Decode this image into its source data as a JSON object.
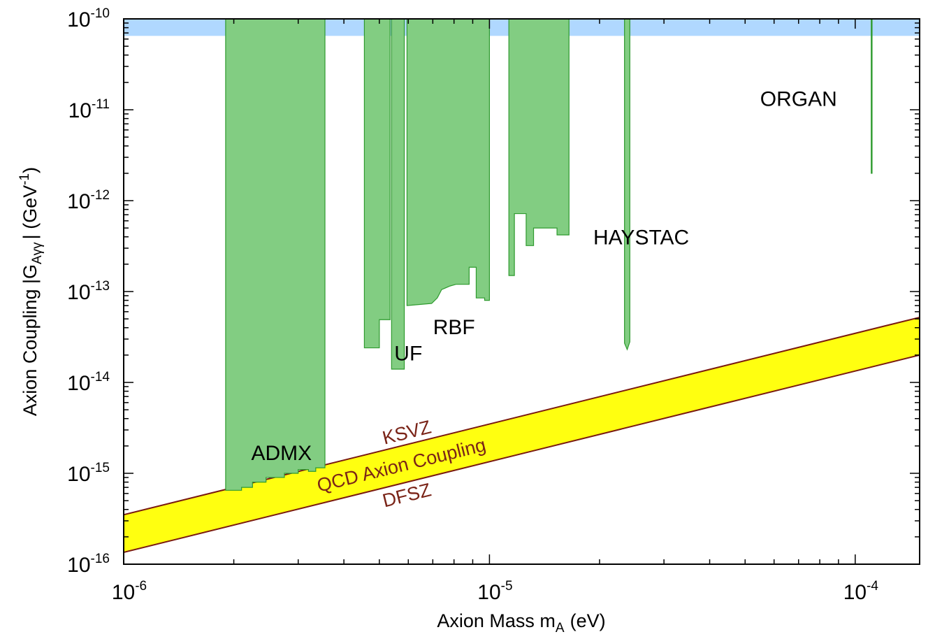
{
  "chart_data": {
    "type": "area",
    "title": "",
    "xlabel": "Axion Mass m",
    "xlabel_sub": "A",
    "xlabel_unit": "(eV)",
    "ylabel": "Axion Coupling |G",
    "ylabel_sub": "Aγγ",
    "ylabel_unit": "| (GeV",
    "ylabel_unit_sup": "-1",
    "ylabel_close": ")",
    "x_scale": "log",
    "y_scale": "log",
    "xlim": [
      1e-06,
      0.00015
    ],
    "ylim": [
      1e-16,
      1e-10
    ],
    "x_ticks": [
      {
        "value": 1e-06,
        "base": "10",
        "exp": "-6"
      },
      {
        "value": 1e-05,
        "base": "10",
        "exp": "-5"
      },
      {
        "value": 0.0001,
        "base": "10",
        "exp": "-4"
      }
    ],
    "y_ticks": [
      {
        "value": 1e-16,
        "base": "10",
        "exp": "-16"
      },
      {
        "value": 1e-15,
        "base": "10",
        "exp": "-15"
      },
      {
        "value": 1e-14,
        "base": "10",
        "exp": "-14"
      },
      {
        "value": 1e-13,
        "base": "10",
        "exp": "-13"
      },
      {
        "value": 1e-12,
        "base": "10",
        "exp": "-12"
      },
      {
        "value": 1e-11,
        "base": "10",
        "exp": "-11"
      },
      {
        "value": 1e-10,
        "base": "10",
        "exp": "-10"
      }
    ],
    "grid": false,
    "colors": {
      "exclusion_fill": "#82cd82",
      "exclusion_edge": "#2e9a2e",
      "qcd_band_fill": "#ffff10",
      "qcd_band_edge": "#7a1a10",
      "top_band_fill": "#b0d8ff",
      "band_label_color": "#7a2418"
    },
    "top_band": {
      "y_from": 6.5e-11,
      "y_to": 1e-10
    },
    "qcd_band": {
      "label": "QCD Axion Coupling",
      "upper_name": "KSVZ",
      "lower_name": "DFSZ",
      "upper_line": [
        [
          1e-06,
          3.5e-16
        ],
        [
          0.00015,
          5.2e-14
        ]
      ],
      "lower_line": [
        [
          1e-06,
          1.35e-16
        ],
        [
          0.00015,
          2e-14
        ]
      ]
    },
    "experiments": [
      {
        "name": "ADMX",
        "label_x": 2.7e-06,
        "label_y": 1.4e-15,
        "regions": [
          {
            "x_from": 1.9e-06,
            "x_to": 3.55e-06,
            "top": 1e-10,
            "lower": [
              [
                1.9e-06,
                6.5e-16
              ],
              [
                2.1e-06,
                6.5e-16
              ],
              [
                2.1e-06,
                7e-16
              ],
              [
                2.25e-06,
                7e-16
              ],
              [
                2.25e-06,
                8e-16
              ],
              [
                2.45e-06,
                8e-16
              ],
              [
                2.45e-06,
                9e-16
              ],
              [
                2.75e-06,
                9e-16
              ],
              [
                2.75e-06,
                1e-15
              ],
              [
                3e-06,
                1e-15
              ],
              [
                3e-06,
                1.1e-15
              ],
              [
                3.2e-06,
                1.1e-15
              ],
              [
                3.2e-06,
                1.05e-15
              ],
              [
                3.35e-06,
                1.05e-15
              ],
              [
                3.35e-06,
                1.15e-15
              ],
              [
                3.55e-06,
                1.15e-15
              ]
            ]
          }
        ]
      },
      {
        "name": "UF",
        "label_x": 6e-06,
        "label_y": 1.75e-14,
        "regions": [
          {
            "x_from": 4.55e-06,
            "x_to": 5.35e-06,
            "top": 1e-10,
            "lower": [
              [
                4.55e-06,
                2.4e-14
              ],
              [
                5e-06,
                2.4e-14
              ],
              [
                5e-06,
                4.9e-14
              ],
              [
                5.35e-06,
                4.9e-14
              ]
            ]
          },
          {
            "x_from": 5.4e-06,
            "x_to": 5.85e-06,
            "top": 1e-10,
            "lower": [
              [
                5.4e-06,
                1.4e-14
              ],
              [
                5.85e-06,
                1.4e-14
              ]
            ]
          }
        ]
      },
      {
        "name": "RBF",
        "label_x": 8e-06,
        "label_y": 3.4e-14,
        "regions": [
          {
            "x_from": 5.95e-06,
            "x_to": 1e-05,
            "top": 1e-10,
            "lower": [
              [
                5.95e-06,
                7e-14
              ],
              [
                6.95e-06,
                7.4e-14
              ],
              [
                7.2e-06,
                8.5e-14
              ],
              [
                7.4e-06,
                1.05e-13
              ],
              [
                7.8e-06,
                1.15e-13
              ],
              [
                8.1e-06,
                1.2e-13
              ],
              [
                8.8e-06,
                1.2e-13
              ],
              [
                8.8e-06,
                1.85e-13
              ],
              [
                9.2e-06,
                1.85e-13
              ],
              [
                9.2e-06,
                8.5e-14
              ],
              [
                9.7e-06,
                8.5e-14
              ],
              [
                9.7e-06,
                8e-14
              ],
              [
                1e-05,
                8e-14
              ]
            ]
          }
        ]
      },
      {
        "name": "RBF",
        "label_x": 0,
        "label_y": 0,
        "regions": [
          {
            "x_from": 1.13e-05,
            "x_to": 1.65e-05,
            "top": 1e-10,
            "lower": [
              [
                1.13e-05,
                1.5e-13
              ],
              [
                1.17e-05,
                1.5e-13
              ],
              [
                1.17e-05,
                7.2e-13
              ],
              [
                1.26e-05,
                7.2e-13
              ],
              [
                1.26e-05,
                3.2e-13
              ],
              [
                1.32e-05,
                3.2e-13
              ],
              [
                1.32e-05,
                5e-13
              ],
              [
                1.53e-05,
                5e-13
              ],
              [
                1.53e-05,
                4.2e-13
              ],
              [
                1.65e-05,
                4.2e-13
              ]
            ]
          }
        ]
      },
      {
        "name": "HAYSTAC",
        "label_x": 2.6e-05,
        "label_y": 3.3e-13,
        "regions": [
          {
            "x_from": 2.34e-05,
            "x_to": 2.42e-05,
            "top": 1e-10,
            "lower": [
              [
                2.34e-05,
                2.7e-14
              ],
              [
                2.38e-05,
                2.3e-14
              ],
              [
                2.42e-05,
                2.8e-14
              ]
            ]
          }
        ]
      },
      {
        "name": "ORGAN",
        "label_x": 7e-05,
        "label_y": 1.1e-11,
        "regions": [
          {
            "x_from": 0.0001106,
            "x_to": 0.0001112,
            "top": 1e-10,
            "lower": [
              [
                0.0001106,
                2e-12
              ],
              [
                0.0001112,
                2e-12
              ]
            ]
          }
        ]
      }
    ]
  }
}
